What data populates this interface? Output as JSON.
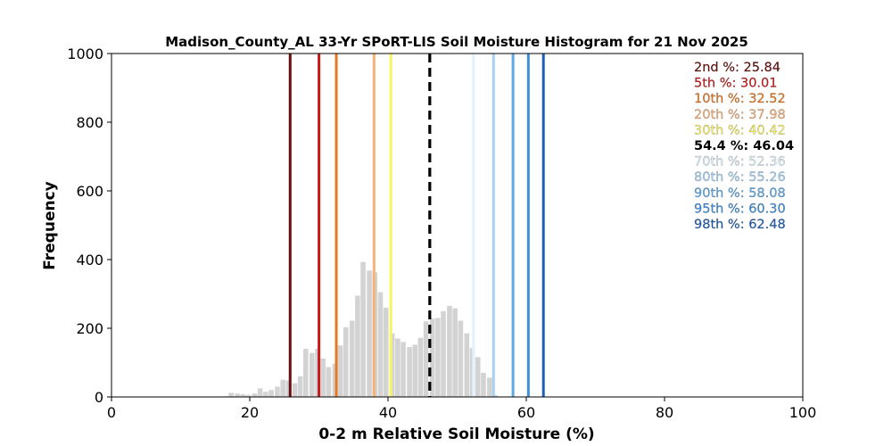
{
  "chart_data": {
    "type": "bar",
    "title": "Madison_County_AL 33-Yr SPoRT-LIS Soil Moisture Histogram for 21 Nov 2025",
    "xlabel": "0-2 m Relative Soil Moisture (%)",
    "ylabel": "Frequency",
    "xlim": [
      0,
      100
    ],
    "ylim": [
      0,
      1000
    ],
    "xticks": [
      "0",
      "20",
      "40",
      "60",
      "80",
      "100"
    ],
    "yticks": [
      "0",
      "200",
      "400",
      "600",
      "800",
      "1000"
    ],
    "grid": false,
    "legend_position": "top-right",
    "bar_color": "#d3d3d3",
    "bars": [
      {
        "x": 16.5,
        "y": 2
      },
      {
        "x": 17.3,
        "y": 12
      },
      {
        "x": 18.2,
        "y": 10
      },
      {
        "x": 19.0,
        "y": 8
      },
      {
        "x": 19.8,
        "y": 6
      },
      {
        "x": 20.7,
        "y": 10
      },
      {
        "x": 21.5,
        "y": 25
      },
      {
        "x": 22.3,
        "y": 15
      },
      {
        "x": 23.1,
        "y": 20
      },
      {
        "x": 24.0,
        "y": 30
      },
      {
        "x": 24.8,
        "y": 50
      },
      {
        "x": 25.6,
        "y": 48
      },
      {
        "x": 26.5,
        "y": 40
      },
      {
        "x": 27.3,
        "y": 60
      },
      {
        "x": 28.1,
        "y": 140
      },
      {
        "x": 29.0,
        "y": 128
      },
      {
        "x": 29.8,
        "y": 140
      },
      {
        "x": 30.6,
        "y": 112
      },
      {
        "x": 31.4,
        "y": 87
      },
      {
        "x": 32.3,
        "y": 97
      },
      {
        "x": 33.1,
        "y": 150
      },
      {
        "x": 33.9,
        "y": 203
      },
      {
        "x": 34.8,
        "y": 222
      },
      {
        "x": 35.6,
        "y": 295
      },
      {
        "x": 36.4,
        "y": 393
      },
      {
        "x": 37.3,
        "y": 368
      },
      {
        "x": 38.1,
        "y": 363
      },
      {
        "x": 38.9,
        "y": 305
      },
      {
        "x": 39.7,
        "y": 260
      },
      {
        "x": 40.6,
        "y": 185
      },
      {
        "x": 41.4,
        "y": 170
      },
      {
        "x": 42.2,
        "y": 160
      },
      {
        "x": 43.1,
        "y": 145
      },
      {
        "x": 43.9,
        "y": 152
      },
      {
        "x": 44.7,
        "y": 172
      },
      {
        "x": 45.5,
        "y": 220
      },
      {
        "x": 46.4,
        "y": 228
      },
      {
        "x": 47.2,
        "y": 230
      },
      {
        "x": 48.0,
        "y": 250
      },
      {
        "x": 48.9,
        "y": 265
      },
      {
        "x": 49.7,
        "y": 258
      },
      {
        "x": 50.5,
        "y": 222
      },
      {
        "x": 51.4,
        "y": 185
      },
      {
        "x": 52.2,
        "y": 142
      },
      {
        "x": 53.0,
        "y": 116
      },
      {
        "x": 53.8,
        "y": 70
      },
      {
        "x": 54.7,
        "y": 56
      },
      {
        "x": 55.5,
        "y": 5
      }
    ],
    "percentiles": [
      {
        "label": "2nd %: 25.84",
        "value": 25.84,
        "color": "#6b0d0d",
        "dashed": false,
        "bold": false
      },
      {
        "label": "5th %: 30.01",
        "value": 30.01,
        "color": "#cc1818",
        "dashed": false,
        "bold": false
      },
      {
        "label": "10th %: 32.52",
        "value": 32.52,
        "color": "#e8781e",
        "dashed": false,
        "bold": false
      },
      {
        "label": "20th %: 37.98",
        "value": 37.98,
        "color": "#f7b27a",
        "dashed": false,
        "bold": false
      },
      {
        "label": "30th %: 40.42",
        "value": 40.42,
        "color": "#fbf35f",
        "dashed": false,
        "bold": false
      },
      {
        "label": "54.4 %: 46.04",
        "value": 46.04,
        "color": "#000000",
        "dashed": true,
        "bold": true
      },
      {
        "label": "70th %: 52.36",
        "value": 52.36,
        "color": "#e0f2fb",
        "dashed": false,
        "bold": false
      },
      {
        "label": "80th %: 55.26",
        "value": 55.26,
        "color": "#a5d1f5",
        "dashed": false,
        "bold": false
      },
      {
        "label": "90th %: 58.08",
        "value": 58.08,
        "color": "#5ea9e8",
        "dashed": false,
        "bold": false
      },
      {
        "label": "95th %: 60.30",
        "value": 60.3,
        "color": "#3e8fe0",
        "dashed": false,
        "bold": false
      },
      {
        "label": "98th %: 62.48",
        "value": 62.48,
        "color": "#1f5fb8",
        "dashed": false,
        "bold": false
      }
    ]
  }
}
